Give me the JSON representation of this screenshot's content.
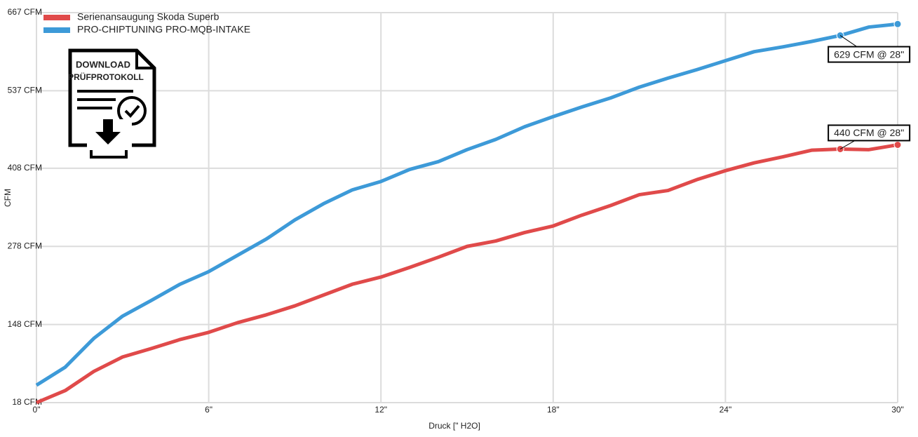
{
  "chart_data": {
    "type": "line",
    "x_label": "Druck [\" H2O]",
    "y_label": "CFM",
    "badge": [
      "DOWNLOAD",
      "PRÜFPROTOKOLL"
    ],
    "x": [
      0,
      1,
      2,
      3,
      4,
      5,
      6,
      7,
      8,
      9,
      10,
      11,
      12,
      13,
      14,
      15,
      16,
      17,
      18,
      19,
      20,
      21,
      22,
      23,
      24,
      25,
      26,
      27,
      28,
      29,
      30
    ],
    "series": [
      {
        "name": "Serienansaugung Skoda Superb",
        "color": "#e04a4a",
        "values": [
          18,
          38,
          70,
          94,
          108,
          123,
          135,
          151,
          164,
          179,
          197,
          215,
          227,
          243,
          260,
          278,
          287,
          301,
          312,
          330,
          346,
          364,
          371,
          389,
          404,
          417,
          427,
          438,
          440,
          439,
          447
        ]
      },
      {
        "name": "PRO-CHIPTUNING PRO-MQB-INTAKE",
        "color": "#3d9ad8",
        "values": [
          47,
          77,
          125,
          162,
          188,
          215,
          236,
          263,
          290,
          322,
          349,
          372,
          386,
          406,
          419,
          439,
          456,
          477,
          494,
          510,
          525,
          543,
          558,
          572,
          587,
          602,
          610,
          619,
          629,
          643,
          648
        ]
      }
    ],
    "highlight_x": [
      28,
      30
    ],
    "annotations": [
      {
        "text": "629 CFM @ 28\"",
        "x": 28,
        "y": 629
      },
      {
        "text": "440 CFM @ 28\"",
        "x": 28,
        "y": 440
      }
    ],
    "xlim": [
      0,
      30
    ],
    "xticks": [
      {
        "value": 0,
        "label": "0\""
      },
      {
        "value": 6,
        "label": "6\""
      },
      {
        "value": 12,
        "label": "12\""
      },
      {
        "value": 18,
        "label": "18\""
      },
      {
        "value": 24,
        "label": "24\""
      },
      {
        "value": 30,
        "label": "30\""
      }
    ],
    "ylim": [
      18,
      667
    ],
    "yticks": [
      {
        "value": 18,
        "label": "18 CFM"
      },
      {
        "value": 148,
        "label": "148 CFM"
      },
      {
        "value": 278,
        "label": "278 CFM"
      },
      {
        "value": 408,
        "label": "408 CFM"
      },
      {
        "value": 537,
        "label": "537 CFM"
      },
      {
        "value": 667,
        "label": "667 CFM"
      }
    ],
    "grid": true
  }
}
